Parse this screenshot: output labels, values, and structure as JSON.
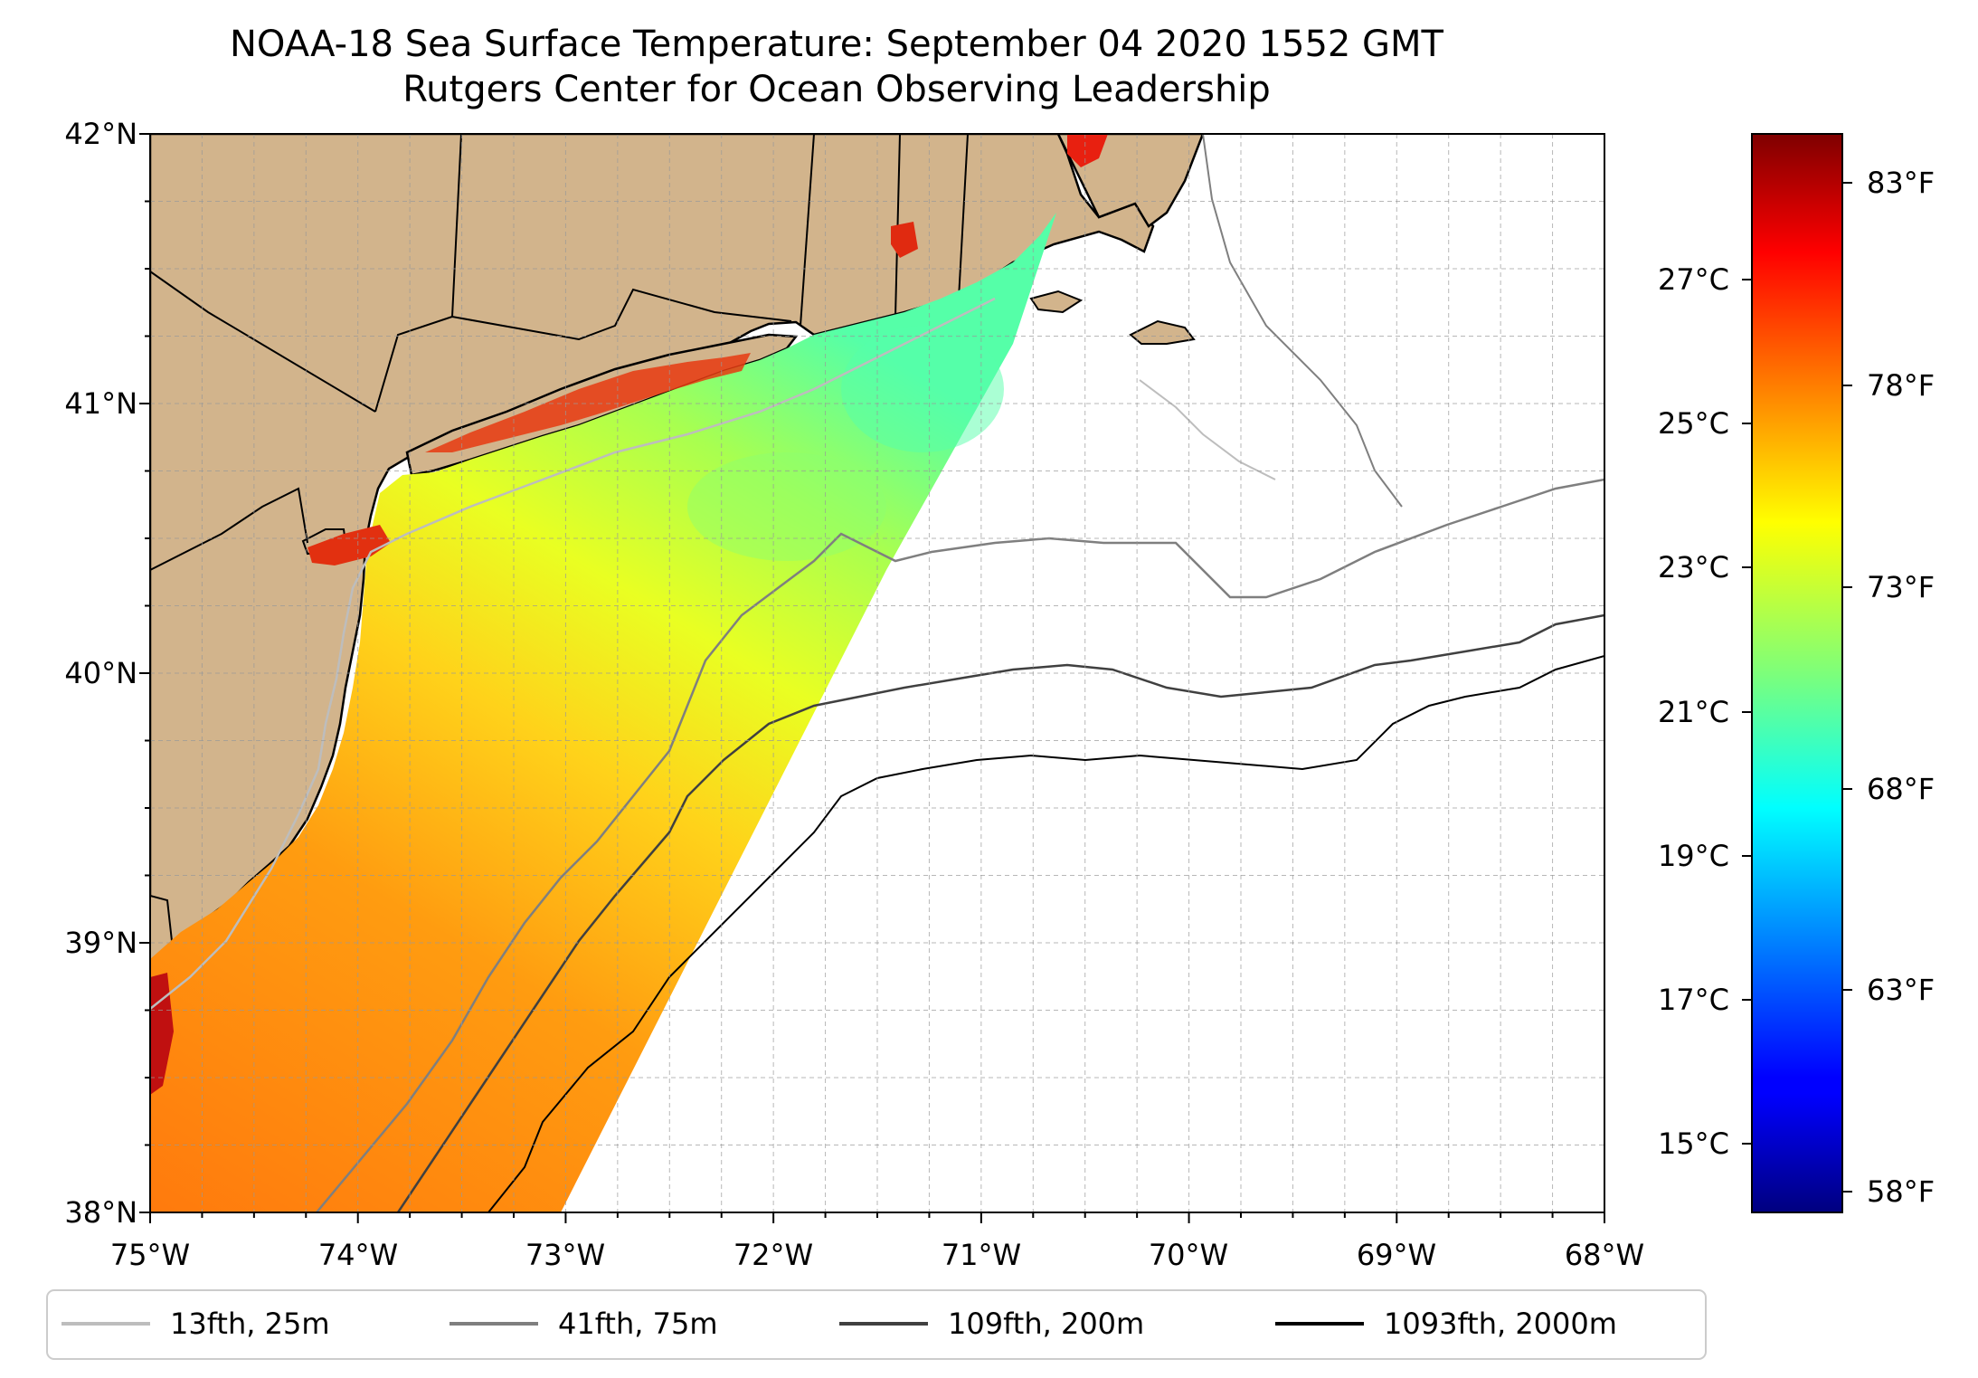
{
  "title": {
    "line1": "NOAA-18 Sea Surface Temperature: September 04 2020 1552 GMT",
    "line2": "Rutgers Center for Ocean Observing Leadership"
  },
  "map": {
    "lon_range": [
      -75,
      -68
    ],
    "lat_range": [
      38,
      42
    ],
    "lon_ticks": [
      "75°W",
      "74°W",
      "73°W",
      "72°W",
      "71°W",
      "70°W",
      "69°W",
      "68°W"
    ],
    "lat_ticks": [
      "42°N",
      "41°N",
      "40°N",
      "39°N",
      "38°N"
    ],
    "grid": "dashed, every 0.25°",
    "land_color": "#d2b48c",
    "ocean_color": "#ffffff"
  },
  "colorbar": {
    "colormap": "jet",
    "range_f": [
      57,
      85
    ],
    "celsius_ticks": [
      "27°C",
      "25°C",
      "23°C",
      "21°C",
      "19°C",
      "17°C",
      "15°C"
    ],
    "fahrenheit_ticks": [
      "83°F",
      "78°F",
      "73°F",
      "68°F",
      "63°F",
      "58°F"
    ]
  },
  "legend": {
    "position": "bottom",
    "items": [
      {
        "label": "13fth, 25m",
        "color": "#bdbdbd"
      },
      {
        "label": "41fth, 75m",
        "color": "#7f7f7f"
      },
      {
        "label": "109fth, 200m",
        "color": "#404040"
      },
      {
        "label": "1093fth, 2000m",
        "color": "#000000"
      }
    ]
  }
}
